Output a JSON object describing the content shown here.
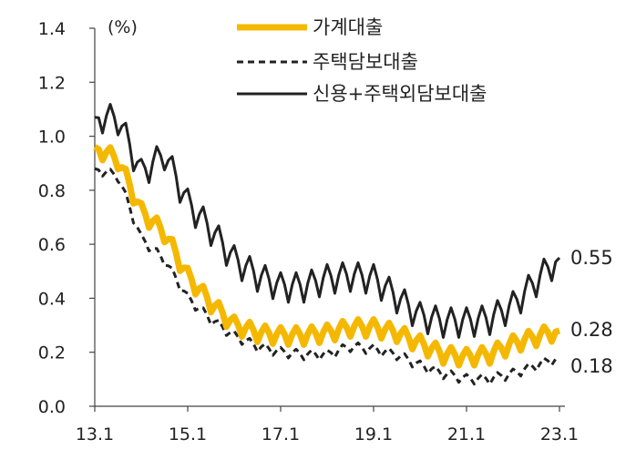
{
  "chart_data": {
    "type": "line",
    "title": "",
    "unit_label": "(%)",
    "xlabel": "",
    "ylabel": "(%)",
    "ylim": [
      0.0,
      1.4
    ],
    "x_range": [
      13.1,
      23.1
    ],
    "grid": false,
    "legend_position": "top-center",
    "x_ticks": [
      "13.1",
      "15.1",
      "17.1",
      "19.1",
      "21.1",
      "23.1"
    ],
    "y_ticks": [
      "0.0",
      "0.2",
      "0.4",
      "0.6",
      "0.8",
      "1.0",
      "1.2",
      "1.4"
    ],
    "series": [
      {
        "name": "가계대출",
        "color": "#F5B800",
        "style": "solid-thick",
        "end_label": "0.28",
        "anchors": [
          [
            0,
            0.96
          ],
          [
            6,
            0.91
          ],
          [
            12,
            0.72
          ],
          [
            18,
            0.64
          ],
          [
            24,
            0.48
          ],
          [
            30,
            0.38
          ],
          [
            36,
            0.3
          ],
          [
            42,
            0.27
          ],
          [
            48,
            0.26
          ],
          [
            54,
            0.26
          ],
          [
            60,
            0.27
          ],
          [
            66,
            0.29
          ],
          [
            72,
            0.29
          ],
          [
            78,
            0.27
          ],
          [
            84,
            0.23
          ],
          [
            90,
            0.19
          ],
          [
            96,
            0.18
          ],
          [
            102,
            0.19
          ],
          [
            108,
            0.23
          ],
          [
            120,
            0.28
          ]
        ]
      },
      {
        "name": "주택담보대출",
        "color": "#222222",
        "style": "dashed",
        "end_label": "0.18",
        "anchors": [
          [
            0,
            0.88
          ],
          [
            6,
            0.85
          ],
          [
            12,
            0.62
          ],
          [
            18,
            0.54
          ],
          [
            24,
            0.4
          ],
          [
            30,
            0.32
          ],
          [
            36,
            0.26
          ],
          [
            42,
            0.22
          ],
          [
            48,
            0.2
          ],
          [
            54,
            0.19
          ],
          [
            60,
            0.19
          ],
          [
            66,
            0.22
          ],
          [
            72,
            0.21
          ],
          [
            78,
            0.19
          ],
          [
            84,
            0.15
          ],
          [
            90,
            0.12
          ],
          [
            96,
            0.1
          ],
          [
            102,
            0.1
          ],
          [
            108,
            0.12
          ],
          [
            120,
            0.18
          ]
        ]
      },
      {
        "name": "신용+주택외담보대출",
        "color": "#222222",
        "style": "solid",
        "end_label": "0.55",
        "anchors": [
          [
            0,
            1.07
          ],
          [
            6,
            1.06
          ],
          [
            12,
            0.86
          ],
          [
            18,
            0.93
          ],
          [
            24,
            0.75
          ],
          [
            30,
            0.65
          ],
          [
            36,
            0.54
          ],
          [
            42,
            0.48
          ],
          [
            48,
            0.44
          ],
          [
            54,
            0.44
          ],
          [
            60,
            0.47
          ],
          [
            66,
            0.48
          ],
          [
            72,
            0.47
          ],
          [
            78,
            0.4
          ],
          [
            84,
            0.33
          ],
          [
            90,
            0.31
          ],
          [
            96,
            0.31
          ],
          [
            102,
            0.32
          ],
          [
            108,
            0.37
          ],
          [
            120,
            0.55
          ]
        ]
      }
    ]
  }
}
